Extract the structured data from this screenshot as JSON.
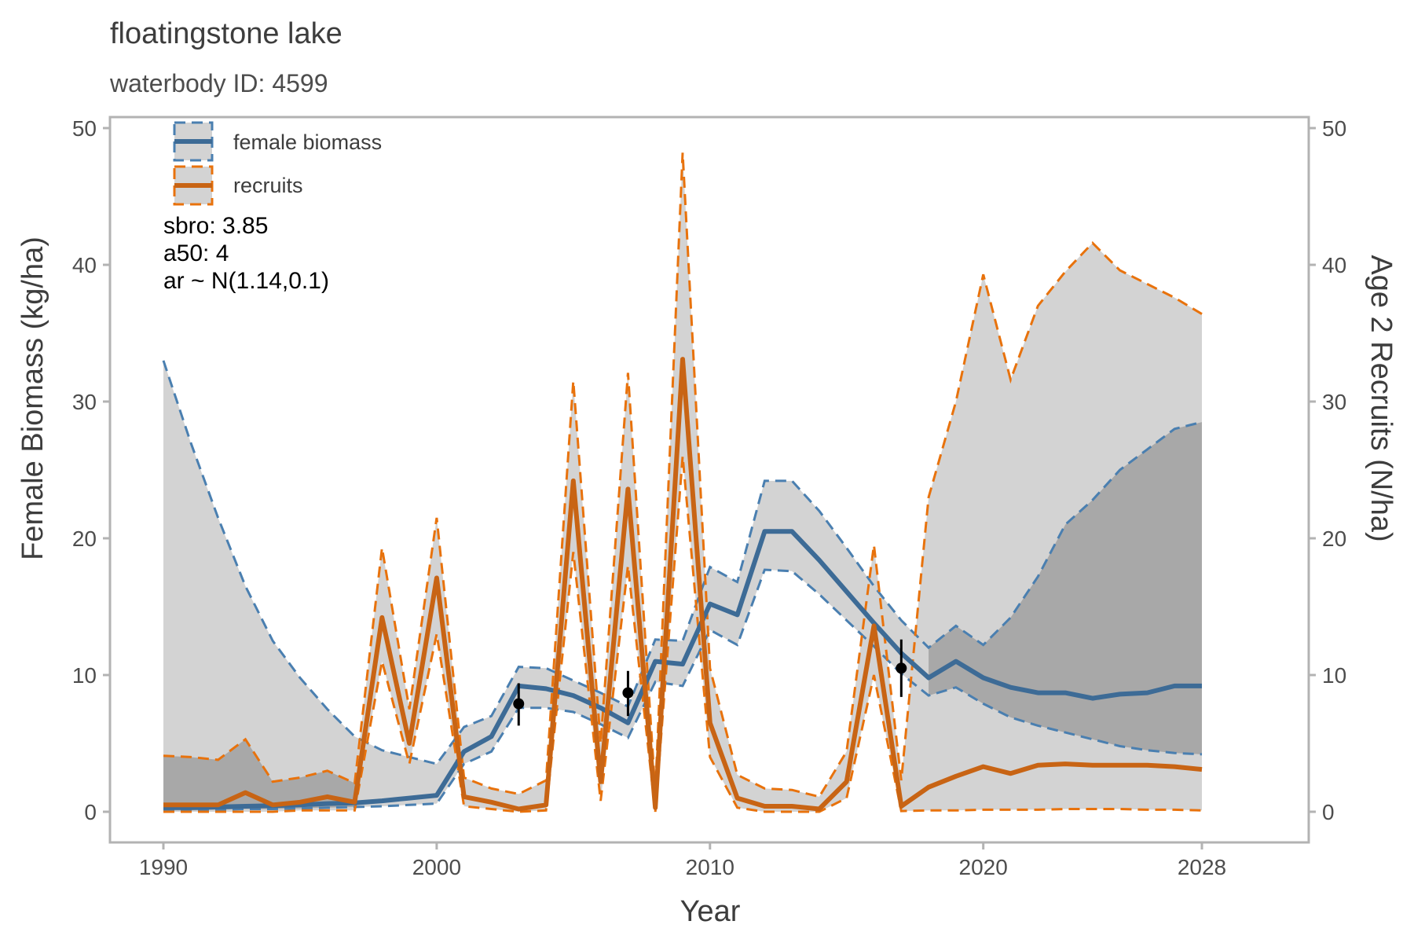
{
  "chart_data": {
    "type": "line",
    "title": "floatingstone lake",
    "subtitle": "waterbody ID: 4599",
    "xlabel": "Year",
    "ylabel": "Female Biomass (kg/ha)",
    "ylabel_right": "Age 2 Recruits (N/ha)",
    "xlim": [
      1990,
      2028
    ],
    "ylim": [
      0,
      50
    ],
    "ylim_right": [
      0,
      50
    ],
    "x_ticks": [
      1990,
      2000,
      2010,
      2020,
      2028
    ],
    "y_ticks": [
      0,
      10,
      20,
      30,
      40,
      50
    ],
    "y_ticks_right": [
      0,
      10,
      20,
      30,
      40,
      50
    ],
    "grid": false,
    "legend_position": "top-left",
    "annotations": [
      "sbro: 3.85",
      "a50: 4",
      "ar ~ N(1.14,0.1)"
    ],
    "colors": {
      "biomass": "#3d6b96",
      "biomass_dash": "#4a7fb0",
      "recruits": "#c86414",
      "recruits_dash": "#e8720c",
      "band_light": "#d3d3d3",
      "band_dark": "#a8a8a8",
      "points": "#000000"
    },
    "series": [
      {
        "name": "female biomass",
        "x": [
          1990,
          1991,
          1992,
          1993,
          1994,
          1995,
          1996,
          1997,
          1998,
          1999,
          2000,
          2001,
          2002,
          2003,
          2004,
          2005,
          2006,
          2007,
          2008,
          2009,
          2010,
          2011,
          2012,
          2013,
          2014,
          2015,
          2016,
          2017,
          2018,
          2019,
          2020,
          2021,
          2022,
          2023,
          2024,
          2025,
          2026,
          2027,
          2028
        ],
        "values": [
          0.3,
          0.3,
          0.35,
          0.4,
          0.45,
          0.5,
          0.6,
          0.65,
          0.8,
          1.0,
          1.2,
          4.4,
          5.5,
          9.2,
          9.0,
          8.5,
          7.6,
          6.5,
          11.0,
          10.8,
          15.2,
          14.4,
          20.5,
          20.5,
          18.4,
          16.1,
          13.8,
          11.6,
          9.8,
          11.0,
          9.8,
          9.1,
          8.7,
          8.7,
          8.3,
          8.6,
          8.7,
          9.2,
          9.2
        ],
        "lower": [
          0.1,
          0.1,
          0.15,
          0.2,
          0.2,
          0.25,
          0.3,
          0.35,
          0.4,
          0.5,
          0.6,
          3.5,
          4.4,
          7.6,
          7.6,
          7.3,
          6.4,
          5.4,
          9.5,
          9.2,
          13.3,
          12.2,
          17.7,
          17.6,
          15.9,
          14.0,
          12.1,
          10.1,
          8.5,
          9.1,
          7.9,
          6.9,
          6.3,
          5.8,
          5.3,
          4.8,
          4.5,
          4.3,
          4.2
        ],
        "upper": [
          33.0,
          27.0,
          21.5,
          16.5,
          12.5,
          9.8,
          7.5,
          5.5,
          4.5,
          4.0,
          3.5,
          6.2,
          7.0,
          10.6,
          10.5,
          9.6,
          8.7,
          7.7,
          12.6,
          12.5,
          17.9,
          16.8,
          24.2,
          24.2,
          22.0,
          19.3,
          16.5,
          14.0,
          12.0,
          13.6,
          12.2,
          14.2,
          17.2,
          21.0,
          22.8,
          25.0,
          26.5,
          28.0,
          28.5
        ]
      },
      {
        "name": "recruits",
        "x": [
          1990,
          1991,
          1992,
          1993,
          1994,
          1995,
          1996,
          1997,
          1998,
          1999,
          2000,
          2001,
          2002,
          2003,
          2004,
          2005,
          2006,
          2007,
          2008,
          2009,
          2010,
          2011,
          2012,
          2013,
          2014,
          2015,
          2016,
          2017,
          2018,
          2019,
          2020,
          2021,
          2022,
          2023,
          2024,
          2025,
          2026,
          2027,
          2028
        ],
        "values": [
          0.5,
          0.5,
          0.5,
          1.4,
          0.5,
          0.7,
          1.1,
          0.7,
          14.2,
          5.0,
          17.1,
          1.1,
          0.7,
          0.2,
          0.5,
          24.2,
          2.2,
          23.6,
          0.3,
          33.1,
          6.5,
          1.0,
          0.4,
          0.4,
          0.2,
          2.2,
          13.6,
          0.4,
          1.8,
          2.6,
          3.3,
          2.8,
          3.4,
          3.5,
          3.4,
          3.4,
          3.4,
          3.3,
          3.1
        ],
        "lower": [
          0.0,
          0.0,
          0.0,
          0.0,
          0.0,
          0.1,
          0.1,
          0.1,
          11.0,
          3.5,
          13.0,
          0.4,
          0.2,
          0.0,
          0.1,
          19.0,
          0.8,
          18.0,
          0.0,
          26.0,
          4.0,
          0.3,
          0.0,
          0.0,
          0.0,
          1.0,
          10.0,
          0.05,
          0.1,
          0.1,
          0.15,
          0.15,
          0.15,
          0.2,
          0.2,
          0.2,
          0.15,
          0.15,
          0.1
        ],
        "upper": [
          4.1,
          4.0,
          3.8,
          5.3,
          2.2,
          2.5,
          3.0,
          2.1,
          19.3,
          7.5,
          21.5,
          2.5,
          1.7,
          1.3,
          2.3,
          31.5,
          5.0,
          32.1,
          1.4,
          48.2,
          10.5,
          2.7,
          1.7,
          1.6,
          1.1,
          4.4,
          19.5,
          2.3,
          23.0,
          30.0,
          39.3,
          31.6,
          37.0,
          39.5,
          41.6,
          39.6,
          38.6,
          37.6,
          36.4
        ]
      }
    ],
    "observations": {
      "x": [
        2003,
        2007,
        2017
      ],
      "values": [
        7.9,
        8.7,
        10.5
      ],
      "lower": [
        6.3,
        7.0,
        8.4
      ],
      "upper": [
        9.4,
        10.3,
        12.6
      ]
    }
  }
}
